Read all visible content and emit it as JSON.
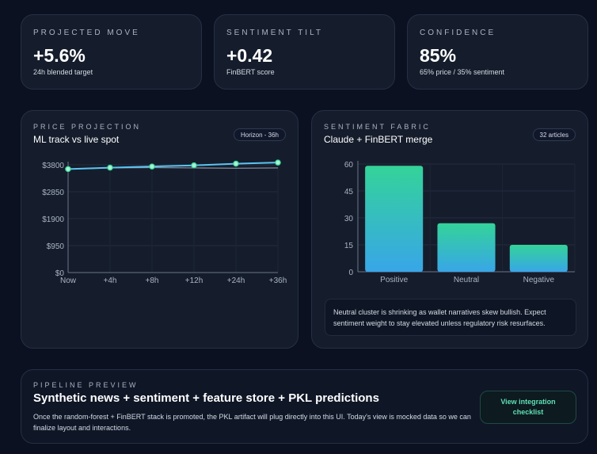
{
  "metrics": [
    {
      "label": "PROJECTED MOVE",
      "value": "+5.6%",
      "sub": "24h blended target"
    },
    {
      "label": "SENTIMENT TILT",
      "value": "+0.42",
      "sub": "FinBERT score"
    },
    {
      "label": "CONFIDENCE",
      "value": "85%",
      "sub": "65% price / 35% sentiment"
    }
  ],
  "price": {
    "label": "PRICE PROJECTION",
    "title": "ML track vs live spot",
    "pill": "Horizon - 36h"
  },
  "sentiment": {
    "label": "SENTIMENT FABRIC",
    "title": "Claude + FinBERT merge",
    "pill": "32 articles",
    "note": "Neutral cluster is shrinking as wallet narratives skew bullish. Expect sentiment weight to stay elevated unless regulatory risk resurfaces."
  },
  "pipeline": {
    "label": "PIPELINE PREVIEW",
    "title": "Synthetic news + sentiment + feature store + PKL predictions",
    "body": "Once the random-forest + FinBERT stack is promoted, the PKL artifact will plug directly into this UI. Today's view is mocked data so we can finalize layout and interactions.",
    "button": "View integration checklist"
  },
  "chart_data": [
    {
      "type": "line",
      "categories": [
        "Now",
        "+4h",
        "+8h",
        "+12h",
        "+24h",
        "+36h"
      ],
      "y_ticks": [
        "$0",
        "$950",
        "$1900",
        "$2850",
        "$3800"
      ],
      "ylim": [
        0,
        3800
      ],
      "grid": true,
      "series": [
        {
          "values": [
            3650,
            3700,
            3740,
            3780,
            3840,
            3880
          ],
          "color": "#5bc4f0",
          "markers": true
        },
        {
          "values": [
            3650,
            3690,
            3700,
            3690,
            3680,
            3690
          ],
          "color": "#8a93a3",
          "markers": false
        }
      ]
    },
    {
      "type": "bar",
      "categories": [
        "Positive",
        "Neutral",
        "Negative"
      ],
      "values": [
        59,
        27,
        15
      ],
      "y_ticks": [
        "0",
        "15",
        "30",
        "45",
        "60"
      ],
      "ylim": [
        0,
        60
      ],
      "grid": true,
      "colors": {
        "top": "#34d399",
        "bottom": "#38a6e8"
      }
    }
  ]
}
